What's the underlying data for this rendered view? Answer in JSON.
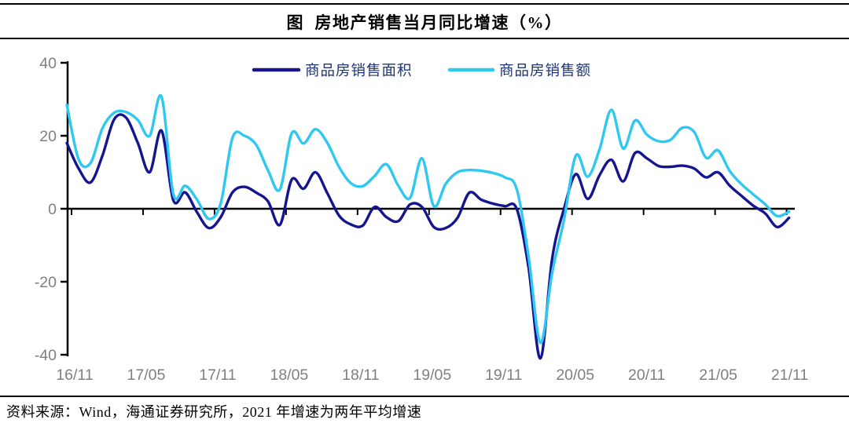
{
  "title": "图  房地产销售当月同比增速（%）",
  "source_note": "资料来源：Wind，海通证券研究所，2021 年增速为两年平均增速",
  "colors": {
    "series_area": "#15158F",
    "series_value": "#2FC8F0",
    "axis_line": "#000000",
    "tick_label": "#7F7F7F",
    "legend_text": "#1F3575",
    "title_text": "#000000"
  },
  "y_axis": {
    "ticks": [
      40,
      20,
      0,
      -20,
      -40
    ]
  },
  "x_axis": {
    "labels": [
      "16/11",
      "17/05",
      "17/11",
      "18/05",
      "18/11",
      "19/05",
      "19/11",
      "20/05",
      "20/11",
      "21/05",
      "21/11"
    ]
  },
  "legend": {
    "items": [
      {
        "label": "商品房销售面积",
        "color": "#15158F"
      },
      {
        "label": "商品房销售额",
        "color": "#2FC8F0"
      }
    ]
  },
  "chart_data": {
    "type": "line",
    "smooth": true,
    "title": "图 房地产销售当月同比增速（%）",
    "ylabel": "",
    "xlabel": "",
    "ylim": [
      -40,
      40
    ],
    "grid": false,
    "legend_position": "top-center",
    "x": [
      "16/10",
      "16/11",
      "16/12",
      "17/01",
      "17/02",
      "17/03",
      "17/04",
      "17/05",
      "17/06",
      "17/07",
      "17/08",
      "17/09",
      "17/10",
      "17/11",
      "17/12",
      "18/01",
      "18/02",
      "18/03",
      "18/04",
      "18/05",
      "18/06",
      "18/07",
      "18/08",
      "18/09",
      "18/10",
      "18/11",
      "18/12",
      "19/01",
      "19/02",
      "19/03",
      "19/04",
      "19/05",
      "19/06",
      "19/07",
      "19/08",
      "19/09",
      "19/10",
      "19/11",
      "19/12",
      "20/01",
      "20/02",
      "20/03",
      "20/04",
      "20/05",
      "20/06",
      "20/07",
      "20/08",
      "20/09",
      "20/10",
      "20/11",
      "20/12",
      "21/01",
      "21/02",
      "21/03",
      "21/04",
      "21/05",
      "21/06",
      "21/07",
      "21/08",
      "21/09",
      "21/10",
      "21/11"
    ],
    "series": [
      {
        "name": "商品房销售面积",
        "color": "#15158F",
        "values": [
          18,
          11,
          7.2,
          14.5,
          24.5,
          25,
          18,
          10,
          21.4,
          2.3,
          4.5,
          -1,
          -5.3,
          -2.3,
          4.5,
          6,
          4.4,
          2,
          -4.4,
          8,
          5.5,
          10,
          4.3,
          -1.9,
          -4.3,
          -4.6,
          0.5,
          -2.3,
          -3.4,
          1.2,
          0.5,
          -5,
          -5.3,
          -2.5,
          4.4,
          2.5,
          1.4,
          0.7,
          0,
          -16,
          -41,
          -13.5,
          0,
          9.5,
          2.7,
          9.2,
          13.4,
          7.5,
          15.3,
          13.8,
          11.7,
          11.5,
          11.8,
          11,
          8.6,
          10,
          6.3,
          3.5,
          0.8,
          -1.3,
          -5,
          -2.5
        ]
      },
      {
        "name": "商品房销售额",
        "color": "#2FC8F0",
        "values": [
          28.5,
          13.5,
          12.5,
          22,
          26.3,
          26.5,
          24.3,
          20,
          30.7,
          4,
          6.3,
          2.5,
          -2.8,
          1.5,
          19.5,
          20,
          17.5,
          10.5,
          5.3,
          20.7,
          17.9,
          21.8,
          18.1,
          11.4,
          7,
          6.2,
          9,
          12.2,
          6.3,
          3,
          13.8,
          0.7,
          6.8,
          10,
          10.6,
          10.4,
          9.8,
          8.6,
          5.4,
          -13,
          -36.7,
          -17.4,
          -3,
          14.6,
          8.8,
          16.3,
          27.1,
          16.5,
          24.2,
          20.3,
          18.5,
          18.9,
          22.2,
          21,
          14,
          16,
          10.3,
          6.7,
          3.9,
          1.2,
          -2,
          -0.8
        ]
      }
    ]
  }
}
